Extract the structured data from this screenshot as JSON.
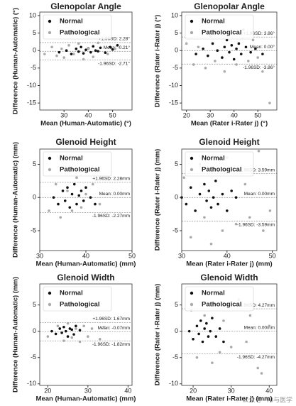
{
  "chart_data": [
    {
      "type": "scatter",
      "title": "Glenopolar Angle",
      "x_label": "Mean (Human-Automatic) (°)",
      "y_label": "Difference (Human-Automatic) (°)",
      "xlim": [
        20,
        58
      ],
      "xticks": [
        30,
        40,
        50
      ],
      "ylim": [
        -17,
        11
      ],
      "yticks": [
        -15,
        -10,
        -5,
        0,
        5,
        10
      ],
      "reference_lines": [
        {
          "value": 2.28,
          "label": "+1.96SD: 2.28°"
        },
        {
          "value": -0.21,
          "label": "Mean: -0.21°"
        },
        {
          "value": -2.71,
          "label": "-1.96SD: -2.71°"
        }
      ],
      "series": [
        {
          "name": "Normal",
          "color": "#111111",
          "x": [
            28,
            31,
            33,
            35,
            36,
            37,
            38,
            39,
            40,
            41,
            42,
            43,
            44,
            45,
            47,
            49,
            50,
            52
          ],
          "values": [
            -0.5,
            0,
            -1,
            0.5,
            -0.3,
            1,
            -0.8,
            0.2,
            0.6,
            -0.5,
            1.2,
            0,
            -0.2,
            0.8,
            -0.6,
            1,
            0.3,
            1.5
          ]
        },
        {
          "name": "Pathological",
          "color": "#aaaaaa",
          "x": [
            22,
            25,
            27,
            29,
            30,
            32,
            34,
            36,
            38,
            40,
            42,
            44,
            48,
            51
          ],
          "values": [
            -1,
            1,
            -1.5,
            0.5,
            -2,
            1.5,
            -1,
            2,
            -2.5,
            0.5,
            -1.8,
            2.2,
            -1,
            0.5
          ]
        }
      ]
    },
    {
      "type": "scatter",
      "title": "Glenopolar Angle",
      "x_label": "Mean (Rater i-Rater j) (°)",
      "y_label": "Difference (Rater i-Rater j) (°)",
      "xlim": [
        18,
        58
      ],
      "xticks": [
        20,
        30,
        40,
        50
      ],
      "ylim": [
        -17,
        11
      ],
      "yticks": [
        -15,
        -10,
        -5,
        0,
        5,
        10
      ],
      "reference_lines": [
        {
          "value": 3.86,
          "label": "+1.96SD: 3.86°"
        },
        {
          "value": 0,
          "label": "Mean: 0.00°"
        },
        {
          "value": -3.86,
          "label": "-1.96SD: -3.86°"
        }
      ],
      "series": [
        {
          "name": "Normal",
          "color": "#111111",
          "x": [
            24,
            27,
            29,
            31,
            33,
            35,
            36,
            37,
            38,
            39,
            40,
            41,
            42,
            43,
            45,
            47,
            49,
            52
          ],
          "values": [
            -1,
            0.5,
            -1.5,
            2,
            0,
            -2,
            1,
            3,
            -0.5,
            1.5,
            -2.5,
            0.5,
            2,
            -1,
            1,
            -0.5,
            0.5,
            -1
          ]
        },
        {
          "name": "Pathological",
          "color": "#aaaaaa",
          "x": [
            20,
            23,
            25,
            28,
            30,
            32,
            34,
            36,
            38,
            41,
            44,
            46,
            48,
            50,
            52,
            55
          ],
          "values": [
            2,
            -4,
            1,
            -5,
            4,
            -3,
            8,
            -6,
            5,
            -4,
            6,
            -3,
            3,
            -2,
            -6,
            -15
          ]
        }
      ]
    },
    {
      "type": "scatter",
      "title": "Glenoid Height",
      "x_label": "Mean (Human-Automatic) (mm)",
      "y_label": "Difference (Human-Automatic) (mm)",
      "xlim": [
        30,
        50
      ],
      "xticks": [
        30,
        40,
        50
      ],
      "ylim": [
        -8,
        7.3
      ],
      "yticks": [
        -5,
        0,
        5
      ],
      "reference_lines": [
        {
          "value": 2.28,
          "label": "+1.96SD: 2.28mm"
        },
        {
          "value": 0,
          "label": "Mean: 0.00mm"
        },
        {
          "value": -2.27,
          "label": "-1.96SD: -2.27mm"
        }
      ],
      "series": [
        {
          "name": "Normal",
          "color": "#111111",
          "x": [
            33,
            34,
            35,
            35.5,
            36,
            36.5,
            37,
            37.5,
            38,
            38.5,
            39,
            39.5,
            40,
            41,
            42
          ],
          "values": [
            0,
            -1,
            1,
            -0.5,
            1.5,
            -1.5,
            0.5,
            2,
            -1,
            0.3,
            1,
            -0.5,
            1.5,
            0,
            -1
          ]
        },
        {
          "name": "Pathological",
          "color": "#aaaaaa",
          "x": [
            32,
            33.5,
            34.5,
            36,
            37,
            38,
            39,
            40,
            41.5,
            43
          ],
          "values": [
            -2,
            2,
            -3,
            1,
            -2,
            3,
            -1.5,
            0.5,
            2,
            -1
          ]
        }
      ]
    },
    {
      "type": "scatter",
      "title": "Glenoid Height",
      "x_label": "Mean (Rater i-Rater j) (mm)",
      "y_label": "Difference (Rater i-Rater j) (mm)",
      "xlim": [
        30,
        51
      ],
      "xticks": [
        30,
        40,
        50
      ],
      "ylim": [
        -8,
        7.3
      ],
      "yticks": [
        -5,
        0,
        5
      ],
      "reference_lines": [
        {
          "value": 3.59,
          "label": "+1.96SD: 3.59mm"
        },
        {
          "value": 0,
          "label": "Mean: 0.00mm"
        },
        {
          "value": -3.59,
          "label": "-1.96SD: -3.59mm"
        }
      ],
      "series": [
        {
          "name": "Normal",
          "color": "#111111",
          "x": [
            30,
            31,
            32,
            33,
            34,
            35,
            35.5,
            36,
            36.5,
            37,
            37.5,
            38,
            39,
            40,
            41,
            42
          ],
          "values": [
            0,
            -1,
            1.5,
            -2,
            0.5,
            2,
            -0.5,
            1,
            -1.5,
            0,
            2.5,
            -1,
            0.5,
            -2,
            1,
            0
          ]
        },
        {
          "name": "Pathological",
          "color": "#aaaaaa",
          "x": [
            30.5,
            32,
            34,
            35,
            36.5,
            38,
            39,
            40,
            42,
            44,
            45,
            47,
            48,
            49.5
          ],
          "values": [
            3,
            -6,
            5,
            -3,
            -7,
            4,
            -5,
            6,
            -4,
            2,
            -3,
            7,
            -5,
            -2
          ]
        }
      ]
    },
    {
      "type": "scatter",
      "title": "Glenoid Width",
      "x_label": "Mean (Human-Automatic) (mm)",
      "y_label": "Difference (Human-Automatic) (mm)",
      "xlim": [
        18,
        41
      ],
      "xticks": [
        20,
        30,
        40
      ],
      "ylim": [
        -10.3,
        9
      ],
      "yticks": [
        -10,
        -5,
        0,
        5
      ],
      "reference_lines": [
        {
          "value": 1.67,
          "label": "+1.96SD: 1.67mm"
        },
        {
          "value": -0.07,
          "label": "Mean: -0.07mm"
        },
        {
          "value": -1.82,
          "label": "-1.96SD: -1.82mm"
        }
      ],
      "series": [
        {
          "name": "Normal",
          "color": "#111111",
          "x": [
            21,
            22,
            23,
            23.5,
            24,
            24.5,
            25,
            25.5,
            26,
            26.5,
            27,
            28
          ],
          "values": [
            0,
            -0.5,
            0.5,
            -0.3,
            0.8,
            0,
            -1,
            0.5,
            0.3,
            -0.6,
            1,
            0.2
          ]
        },
        {
          "name": "Pathological",
          "color": "#aaaaaa",
          "x": [
            20,
            22.5,
            24,
            25,
            26,
            27,
            28,
            29,
            30,
            31,
            33,
            34
          ],
          "values": [
            -1,
            1,
            -1.8,
            1.5,
            -1.2,
            0.5,
            -2,
            1,
            -1,
            0.5,
            -1.5,
            0.8
          ]
        }
      ]
    },
    {
      "type": "scatter",
      "title": "Glenoid Width",
      "x_label": "Mean (Rater i-Rater j) (mm)",
      "y_label": "Difference (Rater i-Rater j) (mm)",
      "xlim": [
        17,
        42
      ],
      "xticks": [
        20,
        30,
        40
      ],
      "ylim": [
        -10.3,
        9
      ],
      "yticks": [
        -10,
        -5,
        0,
        5
      ],
      "reference_lines": [
        {
          "value": 4.27,
          "label": "+1.96SD: 4.27mm"
        },
        {
          "value": 0,
          "label": "Mean: 0.00mm"
        },
        {
          "value": -4.27,
          "label": "-1.96SD: -4.27mm"
        }
      ],
      "series": [
        {
          "name": "Normal",
          "color": "#111111",
          "x": [
            19,
            20,
            21,
            21.5,
            22,
            22.5,
            23,
            23.5,
            24,
            24.5,
            25,
            26,
            27,
            28
          ],
          "values": [
            0,
            -1.5,
            1,
            -0.5,
            2,
            -2,
            0.5,
            1.5,
            -1,
            0,
            2.5,
            -1,
            0.5,
            -2
          ]
        },
        {
          "name": "Pathological",
          "color": "#aaaaaa",
          "x": [
            19.5,
            21,
            23,
            25,
            26,
            27,
            28,
            30,
            32,
            34,
            35,
            37,
            38,
            40
          ],
          "values": [
            4,
            -5,
            3,
            -6,
            5,
            -4,
            2,
            -3,
            6,
            -2,
            3,
            -7,
            -8,
            1
          ]
        }
      ]
    }
  ],
  "watermark": "公众号 · AI与医学"
}
